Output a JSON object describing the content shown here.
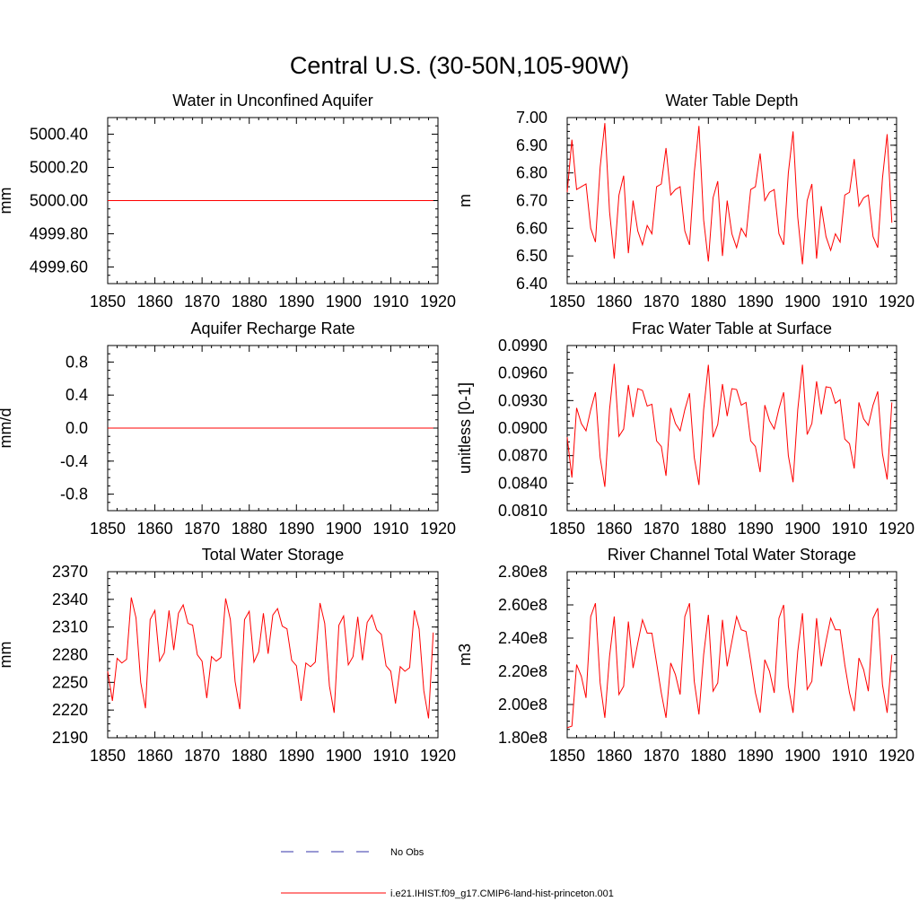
{
  "figure_title": "Central U.S. (30-50N,105-90W)",
  "colors": {
    "model": "#ff0000",
    "obs": "#3333aa",
    "axis": "#000000"
  },
  "legend": {
    "obs_label": "No Obs",
    "model_label": "i.e21.IHIST.f09_g17.CMIP6-land-hist-princeton.001"
  },
  "chart_data": [
    {
      "type": "line",
      "title": "Water in Unconfined Aquifer",
      "ylabel": "mm",
      "xlim": [
        1850,
        1920
      ],
      "ylim": [
        4999.5,
        5000.5
      ],
      "x_ticks": [
        "1850",
        "1860",
        "1870",
        "1880",
        "1890",
        "1900",
        "1910",
        "1920"
      ],
      "y_ticks": [
        {
          "v": 4999.6,
          "label": "4999.60"
        },
        {
          "v": 4999.8,
          "label": "4999.80"
        },
        {
          "v": 5000.0,
          "label": "5000.00"
        },
        {
          "v": 5000.2,
          "label": "5000.20"
        },
        {
          "v": 5000.4,
          "label": "5000.40"
        }
      ],
      "x_start": 1850,
      "values": [
        5000,
        5000,
        5000,
        5000,
        5000,
        5000,
        5000,
        5000,
        5000,
        5000,
        5000,
        5000,
        5000,
        5000,
        5000,
        5000,
        5000,
        5000,
        5000,
        5000,
        5000,
        5000,
        5000,
        5000,
        5000,
        5000,
        5000,
        5000,
        5000,
        5000,
        5000,
        5000,
        5000,
        5000,
        5000,
        5000,
        5000,
        5000,
        5000,
        5000,
        5000,
        5000,
        5000,
        5000,
        5000,
        5000,
        5000,
        5000,
        5000,
        5000,
        5000,
        5000,
        5000,
        5000,
        5000,
        5000,
        5000,
        5000,
        5000,
        5000,
        5000,
        5000,
        5000,
        5000,
        5000,
        5000,
        5000,
        5000,
        5000,
        5000
      ]
    },
    {
      "type": "line",
      "title": "Water Table Depth",
      "ylabel": "m",
      "xlim": [
        1850,
        1920
      ],
      "ylim": [
        6.4,
        7.0
      ],
      "x_ticks": [
        "1850",
        "1860",
        "1870",
        "1880",
        "1890",
        "1900",
        "1910",
        "1920"
      ],
      "y_ticks": [
        {
          "v": 6.4,
          "label": "6.40"
        },
        {
          "v": 6.5,
          "label": "6.50"
        },
        {
          "v": 6.6,
          "label": "6.60"
        },
        {
          "v": 6.7,
          "label": "6.70"
        },
        {
          "v": 6.8,
          "label": "6.80"
        },
        {
          "v": 6.9,
          "label": "6.90"
        },
        {
          "v": 7.0,
          "label": "7.00"
        }
      ],
      "x_start": 1850,
      "values": [
        6.73,
        6.92,
        6.74,
        6.75,
        6.76,
        6.6,
        6.55,
        6.82,
        6.98,
        6.66,
        6.49,
        6.72,
        6.79,
        6.51,
        6.7,
        6.59,
        6.54,
        6.61,
        6.58,
        6.75,
        6.76,
        6.89,
        6.72,
        6.74,
        6.75,
        6.59,
        6.54,
        6.8,
        6.97,
        6.63,
        6.48,
        6.71,
        6.77,
        6.5,
        6.7,
        6.58,
        6.53,
        6.6,
        6.57,
        6.74,
        6.75,
        6.87,
        6.7,
        6.73,
        6.74,
        6.58,
        6.54,
        6.8,
        6.95,
        6.64,
        6.47,
        6.7,
        6.76,
        6.49,
        6.68,
        6.57,
        6.52,
        6.58,
        6.55,
        6.72,
        6.73,
        6.85,
        6.68,
        6.71,
        6.72,
        6.57,
        6.53,
        6.78,
        6.94,
        6.62
      ]
    },
    {
      "type": "line",
      "title": "Aquifer Recharge Rate",
      "ylabel": "mm/d",
      "xlim": [
        1850,
        1920
      ],
      "ylim": [
        -1.0,
        1.0
      ],
      "x_ticks": [
        "1850",
        "1860",
        "1870",
        "1880",
        "1890",
        "1900",
        "1910",
        "1920"
      ],
      "y_ticks": [
        {
          "v": -0.8,
          "label": "-0.8"
        },
        {
          "v": -0.4,
          "label": "-0.4"
        },
        {
          "v": 0.0,
          "label": "0.0"
        },
        {
          "v": 0.4,
          "label": "0.4"
        },
        {
          "v": 0.8,
          "label": "0.8"
        }
      ],
      "x_start": 1850,
      "values": [
        0,
        0,
        0,
        0,
        0,
        0,
        0,
        0,
        0,
        0,
        0,
        0,
        0,
        0,
        0,
        0,
        0,
        0,
        0,
        0,
        0,
        0,
        0,
        0,
        0,
        0,
        0,
        0,
        0,
        0,
        0,
        0,
        0,
        0,
        0,
        0,
        0,
        0,
        0,
        0,
        0,
        0,
        0,
        0,
        0,
        0,
        0,
        0,
        0,
        0,
        0,
        0,
        0,
        0,
        0,
        0,
        0,
        0,
        0,
        0,
        0,
        0,
        0,
        0,
        0,
        0,
        0,
        0,
        0,
        0
      ]
    },
    {
      "type": "line",
      "title": "Frac Water Table at Surface",
      "ylabel": "unitless [0-1]",
      "xlim": [
        1850,
        1920
      ],
      "ylim": [
        0.081,
        0.099
      ],
      "x_ticks": [
        "1850",
        "1860",
        "1870",
        "1880",
        "1890",
        "1900",
        "1910",
        "1920"
      ],
      "y_ticks": [
        {
          "v": 0.081,
          "label": "0.0810"
        },
        {
          "v": 0.084,
          "label": "0.0840"
        },
        {
          "v": 0.087,
          "label": "0.0870"
        },
        {
          "v": 0.09,
          "label": "0.0900"
        },
        {
          "v": 0.093,
          "label": "0.0930"
        },
        {
          "v": 0.096,
          "label": "0.0960"
        },
        {
          "v": 0.099,
          "label": "0.0990"
        }
      ],
      "x_start": 1850,
      "values": [
        0.089,
        0.0846,
        0.0922,
        0.0905,
        0.0897,
        0.092,
        0.0939,
        0.0868,
        0.0836,
        0.092,
        0.097,
        0.0891,
        0.0899,
        0.0947,
        0.0912,
        0.0943,
        0.0941,
        0.0924,
        0.0926,
        0.0886,
        0.088,
        0.0848,
        0.0922,
        0.0905,
        0.0897,
        0.092,
        0.0938,
        0.0868,
        0.0838,
        0.092,
        0.0969,
        0.089,
        0.0904,
        0.0948,
        0.0913,
        0.0943,
        0.0942,
        0.0925,
        0.0928,
        0.0886,
        0.088,
        0.0852,
        0.0925,
        0.0908,
        0.0899,
        0.0921,
        0.0939,
        0.087,
        0.0841,
        0.092,
        0.0969,
        0.0893,
        0.0905,
        0.0951,
        0.0915,
        0.0945,
        0.0944,
        0.0927,
        0.0931,
        0.0888,
        0.0883,
        0.0856,
        0.0928,
        0.091,
        0.0903,
        0.0925,
        0.094,
        0.0872,
        0.0844,
        0.0928
      ]
    },
    {
      "type": "line",
      "title": "Total Water Storage",
      "ylabel": "mm",
      "xlim": [
        1850,
        1920
      ],
      "ylim": [
        2190,
        2370
      ],
      "x_ticks": [
        "1850",
        "1860",
        "1870",
        "1880",
        "1890",
        "1900",
        "1910",
        "1920"
      ],
      "y_ticks": [
        {
          "v": 2190,
          "label": "2190"
        },
        {
          "v": 2220,
          "label": "2220"
        },
        {
          "v": 2250,
          "label": "2250"
        },
        {
          "v": 2280,
          "label": "2280"
        },
        {
          "v": 2310,
          "label": "2310"
        },
        {
          "v": 2340,
          "label": "2340"
        },
        {
          "v": 2370,
          "label": "2370"
        }
      ],
      "x_start": 1850,
      "values": [
        2262,
        2230,
        2276,
        2271,
        2275,
        2342,
        2320,
        2250,
        2222,
        2318,
        2328,
        2273,
        2282,
        2328,
        2285,
        2325,
        2334,
        2314,
        2312,
        2280,
        2273,
        2233,
        2278,
        2273,
        2277,
        2341,
        2318,
        2251,
        2221,
        2318,
        2327,
        2272,
        2283,
        2325,
        2281,
        2323,
        2330,
        2311,
        2308,
        2274,
        2268,
        2230,
        2271,
        2267,
        2272,
        2336,
        2314,
        2246,
        2217,
        2312,
        2322,
        2269,
        2278,
        2321,
        2274,
        2315,
        2323,
        2307,
        2302,
        2268,
        2262,
        2227,
        2267,
        2262,
        2266,
        2328,
        2308,
        2241,
        2211,
        2304
      ]
    },
    {
      "type": "line",
      "title": "River Channel Total Water Storage",
      "ylabel": "m3",
      "xlim": [
        1850,
        1920
      ],
      "ylim": [
        180000000.0,
        280000000.0
      ],
      "x_ticks": [
        "1850",
        "1860",
        "1870",
        "1880",
        "1890",
        "1900",
        "1910",
        "1920"
      ],
      "y_ticks": [
        {
          "v": 180000000,
          "label": "1.80e8"
        },
        {
          "v": 200000000,
          "label": "2.00e8"
        },
        {
          "v": 220000000,
          "label": "2.20e8"
        },
        {
          "v": 240000000,
          "label": "2.40e8"
        },
        {
          "v": 260000000,
          "label": "2.60e8"
        },
        {
          "v": 280000000,
          "label": "2.80e8"
        }
      ],
      "x_start": 1850,
      "values": [
        186000000.0,
        187000000.0,
        224000000.0,
        217000000.0,
        204000000.0,
        253000000.0,
        261000000.0,
        213000000.0,
        192000000.0,
        229000000.0,
        253000000.0,
        206000000.0,
        211000000.0,
        250000000.0,
        222000000.0,
        237000000.0,
        251000000.0,
        243000000.0,
        243000000.0,
        225000000.0,
        207000000.0,
        192000000.0,
        225000000.0,
        218000000.0,
        206000000.0,
        253000000.0,
        261000000.0,
        214000000.0,
        194000000.0,
        230000000.0,
        254000000.0,
        208000000.0,
        213000000.0,
        251000000.0,
        223000000.0,
        238000000.0,
        253000000.0,
        245000000.0,
        244000000.0,
        226000000.0,
        207000000.0,
        195000000.0,
        227000000.0,
        220000000.0,
        207000000.0,
        252000000.0,
        260000000.0,
        211000000.0,
        195000000.0,
        232000000.0,
        255000000.0,
        209000000.0,
        214000000.0,
        252000000.0,
        223000000.0,
        238000000.0,
        252000000.0,
        245000000.0,
        245000000.0,
        224000000.0,
        207000000.0,
        196000000.0,
        228000000.0,
        221000000.0,
        208000000.0,
        252000000.0,
        258000000.0,
        212000000.0,
        195000000.0,
        230000000.0
      ]
    }
  ]
}
